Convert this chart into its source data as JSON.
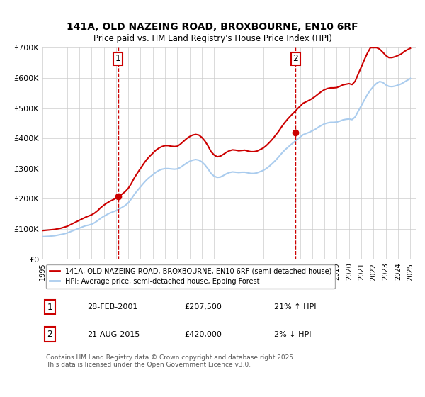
{
  "title": "141A, OLD NAZEING ROAD, BROXBOURNE, EN10 6RF",
  "subtitle": "Price paid vs. HM Land Registry's House Price Index (HPI)",
  "ylabel": "",
  "xlabel": "",
  "ylim": [
    0,
    700000
  ],
  "yticks": [
    0,
    100000,
    200000,
    300000,
    400000,
    500000,
    600000,
    700000
  ],
  "ytick_labels": [
    "£0",
    "£100K",
    "£200K",
    "£300K",
    "£400K",
    "£500K",
    "£600K",
    "£700K"
  ],
  "xlim_start": 1995.0,
  "xlim_end": 2025.5,
  "background_color": "#ffffff",
  "grid_color": "#cccccc",
  "sale1_date": 2001.163,
  "sale1_price": 207500,
  "sale1_label": "1",
  "sale2_date": 2015.639,
  "sale2_price": 420000,
  "sale2_label": "2",
  "red_line_color": "#cc0000",
  "blue_line_color": "#aaccee",
  "dashed_line_color": "#cc0000",
  "legend_label_red": "141A, OLD NAZEING ROAD, BROXBOURNE, EN10 6RF (semi-detached house)",
  "legend_label_blue": "HPI: Average price, semi-detached house, Epping Forest",
  "table_row1": [
    "1",
    "28-FEB-2001",
    "£207,500",
    "21% ↑ HPI"
  ],
  "table_row2": [
    "2",
    "21-AUG-2015",
    "£420,000",
    "2% ↓ HPI"
  ],
  "footnote": "Contains HM Land Registry data © Crown copyright and database right 2025.\nThis data is licensed under the Open Government Licence v3.0.",
  "hpi_data": {
    "years": [
      1995.0,
      1995.25,
      1995.5,
      1995.75,
      1996.0,
      1996.25,
      1996.5,
      1996.75,
      1997.0,
      1997.25,
      1997.5,
      1997.75,
      1998.0,
      1998.25,
      1998.5,
      1998.75,
      1999.0,
      1999.25,
      1999.5,
      1999.75,
      2000.0,
      2000.25,
      2000.5,
      2000.75,
      2001.0,
      2001.25,
      2001.5,
      2001.75,
      2002.0,
      2002.25,
      2002.5,
      2002.75,
      2003.0,
      2003.25,
      2003.5,
      2003.75,
      2004.0,
      2004.25,
      2004.5,
      2004.75,
      2005.0,
      2005.25,
      2005.5,
      2005.75,
      2006.0,
      2006.25,
      2006.5,
      2006.75,
      2007.0,
      2007.25,
      2007.5,
      2007.75,
      2008.0,
      2008.25,
      2008.5,
      2008.75,
      2009.0,
      2009.25,
      2009.5,
      2009.75,
      2010.0,
      2010.25,
      2010.5,
      2010.75,
      2011.0,
      2011.25,
      2011.5,
      2011.75,
      2012.0,
      2012.25,
      2012.5,
      2012.75,
      2013.0,
      2013.25,
      2013.5,
      2013.75,
      2014.0,
      2014.25,
      2014.5,
      2014.75,
      2015.0,
      2015.25,
      2015.5,
      2015.75,
      2016.0,
      2016.25,
      2016.5,
      2016.75,
      2017.0,
      2017.25,
      2017.5,
      2017.75,
      2018.0,
      2018.25,
      2018.5,
      2018.75,
      2019.0,
      2019.25,
      2019.5,
      2019.75,
      2020.0,
      2020.25,
      2020.5,
      2020.75,
      2021.0,
      2021.25,
      2021.5,
      2021.75,
      2022.0,
      2022.25,
      2022.5,
      2022.75,
      2023.0,
      2023.25,
      2023.5,
      2023.75,
      2024.0,
      2024.25,
      2024.5,
      2024.75,
      2025.0
    ],
    "values": [
      75000,
      75500,
      76000,
      77000,
      78000,
      80000,
      82000,
      84000,
      87000,
      91000,
      95000,
      99000,
      103000,
      107000,
      111000,
      113000,
      116000,
      121000,
      128000,
      136000,
      142000,
      148000,
      153000,
      157000,
      161000,
      166000,
      172000,
      178000,
      187000,
      200000,
      215000,
      228000,
      240000,
      252000,
      263000,
      272000,
      280000,
      288000,
      294000,
      298000,
      300000,
      300000,
      299000,
      298000,
      299000,
      304000,
      311000,
      318000,
      324000,
      328000,
      330000,
      328000,
      322000,
      312000,
      299000,
      284000,
      275000,
      271000,
      272000,
      277000,
      283000,
      287000,
      289000,
      288000,
      287000,
      288000,
      288000,
      286000,
      284000,
      284000,
      286000,
      290000,
      294000,
      300000,
      308000,
      317000,
      327000,
      338000,
      350000,
      361000,
      370000,
      379000,
      387000,
      396000,
      404000,
      412000,
      416000,
      420000,
      425000,
      430000,
      437000,
      443000,
      448000,
      451000,
      453000,
      453000,
      454000,
      457000,
      461000,
      463000,
      464000,
      462000,
      471000,
      490000,
      508000,
      527000,
      545000,
      560000,
      572000,
      582000,
      588000,
      585000,
      577000,
      572000,
      571000,
      573000,
      576000,
      580000,
      586000,
      592000,
      598000
    ]
  },
  "price_data": {
    "years": [
      1995.0,
      1995.25,
      1995.5,
      1995.75,
      1996.0,
      1996.25,
      1996.5,
      1996.75,
      1997.0,
      1997.25,
      1997.5,
      1997.75,
      1998.0,
      1998.25,
      1998.5,
      1998.75,
      1999.0,
      1999.25,
      1999.5,
      1999.75,
      2000.0,
      2000.25,
      2000.5,
      2000.75,
      2001.0,
      2001.25,
      2001.5,
      2001.75,
      2002.0,
      2002.25,
      2002.5,
      2002.75,
      2003.0,
      2003.25,
      2003.5,
      2003.75,
      2004.0,
      2004.25,
      2004.5,
      2004.75,
      2005.0,
      2005.25,
      2005.5,
      2005.75,
      2006.0,
      2006.25,
      2006.5,
      2006.75,
      2007.0,
      2007.25,
      2007.5,
      2007.75,
      2008.0,
      2008.25,
      2008.5,
      2008.75,
      2009.0,
      2009.25,
      2009.5,
      2009.75,
      2010.0,
      2010.25,
      2010.5,
      2010.75,
      2011.0,
      2011.25,
      2011.5,
      2011.75,
      2012.0,
      2012.25,
      2012.5,
      2012.75,
      2013.0,
      2013.25,
      2013.5,
      2013.75,
      2014.0,
      2014.25,
      2014.5,
      2014.75,
      2015.0,
      2015.25,
      2015.5,
      2015.75,
      2016.0,
      2016.25,
      2016.5,
      2016.75,
      2017.0,
      2017.25,
      2017.5,
      2017.75,
      2018.0,
      2018.25,
      2018.5,
      2018.75,
      2019.0,
      2019.25,
      2019.5,
      2019.75,
      2020.0,
      2020.25,
      2020.5,
      2020.75,
      2021.0,
      2021.25,
      2021.5,
      2021.75,
      2022.0,
      2022.25,
      2022.5,
      2022.75,
      2023.0,
      2023.25,
      2023.5,
      2023.75,
      2024.0,
      2024.25,
      2024.5,
      2024.75,
      2025.0
    ],
    "values": [
      95000,
      96000,
      97000,
      98000,
      99000,
      101000,
      103000,
      106000,
      109000,
      114000,
      119000,
      124000,
      129000,
      134000,
      139000,
      143000,
      147000,
      153000,
      161000,
      171000,
      179000,
      186000,
      192000,
      197000,
      202000,
      208000,
      216000,
      224000,
      235000,
      251000,
      270000,
      286000,
      301000,
      316000,
      330000,
      341000,
      351000,
      361000,
      368000,
      373000,
      376000,
      376000,
      374000,
      373000,
      374000,
      381000,
      390000,
      399000,
      406000,
      411000,
      413000,
      411000,
      403000,
      391000,
      375000,
      356000,
      345000,
      339000,
      341000,
      347000,
      354000,
      359000,
      362000,
      361000,
      359000,
      360000,
      361000,
      358000,
      356000,
      356000,
      358000,
      363000,
      368000,
      376000,
      386000,
      397000,
      410000,
      423000,
      438000,
      452000,
      464000,
      475000,
      485000,
      496000,
      506000,
      516000,
      521000,
      526000,
      532000,
      539000,
      547000,
      555000,
      561000,
      565000,
      567000,
      567000,
      568000,
      572000,
      577000,
      579000,
      581000,
      578000,
      589000,
      613000,
      636000,
      660000,
      682000,
      700000,
      700000,
      700000,
      695000,
      685000,
      674000,
      667000,
      667000,
      670000,
      674000,
      679000,
      687000,
      693000,
      698000
    ]
  }
}
